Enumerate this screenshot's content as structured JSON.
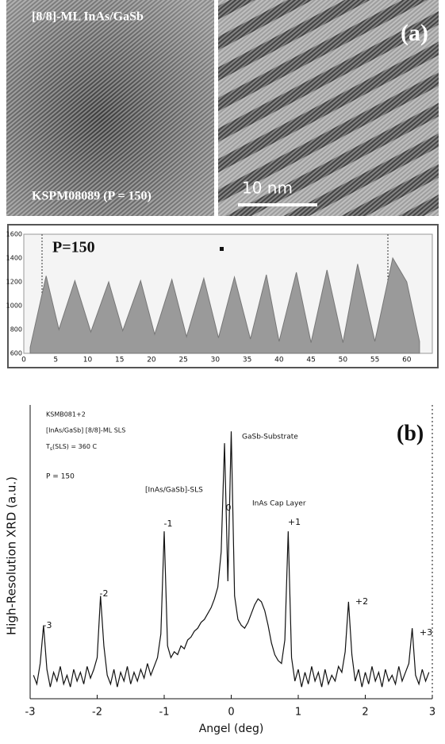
{
  "images": {
    "left_caption": "[8/8]-ML InAs/GaSb",
    "left_sample": "KSPM08089 (P = 150)",
    "scale_bar": "10 nm",
    "panel_label": "(a)"
  },
  "chart_data": [
    {
      "type": "area",
      "annotation": "P=150",
      "color": "#9a9a9a",
      "x": [
        1,
        3.5,
        5.5,
        8,
        10.5,
        13.3,
        15.5,
        18.3,
        20.5,
        23.2,
        25.5,
        28.2,
        30.5,
        33,
        35.5,
        38,
        40,
        42.7,
        45,
        47.5,
        50,
        52.3,
        55,
        57.8,
        60,
        62
      ],
      "values": [
        650,
        1250,
        800,
        1210,
        780,
        1200,
        790,
        1210,
        760,
        1220,
        740,
        1230,
        730,
        1240,
        720,
        1260,
        700,
        1280,
        690,
        1300,
        690,
        1350,
        700,
        1400,
        1200,
        700
      ],
      "xlim": [
        0,
        64
      ],
      "xticks": [
        0,
        5,
        10,
        15,
        20,
        25,
        30,
        35,
        40,
        45,
        50,
        55,
        60
      ],
      "ylim": [
        600,
        1600
      ],
      "yticks": [
        600,
        800,
        1000,
        1200,
        1400,
        1600
      ]
    },
    {
      "type": "line",
      "color": "#111111",
      "panel_label": "(b)",
      "notes": [
        "KSMB081+2",
        "[InAs/GaSb] [8/8]-ML SLS"
      ],
      "temp_symbol": "T",
      "temp_subscript": "s",
      "temp_rest": "(SLS) = 360 C",
      "period": "P = 150",
      "peak_names": [
        "GaSb-Substrate",
        "[InAs/GaSb]-SLS",
        "InAs Cap Layer"
      ],
      "orders": [
        "-3",
        "-2",
        "-1",
        "0",
        "+1",
        "+2",
        "+3"
      ],
      "xlabel": "Angel (deg)",
      "ylabel": "High-Resolution XRD (a.u.)",
      "xlim": [
        -3,
        3
      ],
      "xticks": [
        -3,
        -2,
        -1,
        0,
        1,
        2,
        3
      ],
      "ylim": [
        0,
        100
      ],
      "x": [
        -2.95,
        -2.9,
        -2.85,
        -2.8,
        -2.75,
        -2.7,
        -2.65,
        -2.6,
        -2.55,
        -2.5,
        -2.45,
        -2.4,
        -2.35,
        -2.3,
        -2.25,
        -2.2,
        -2.15,
        -2.1,
        -2.05,
        -2.0,
        -1.95,
        -1.9,
        -1.85,
        -1.8,
        -1.75,
        -1.7,
        -1.65,
        -1.6,
        -1.55,
        -1.5,
        -1.45,
        -1.4,
        -1.35,
        -1.3,
        -1.25,
        -1.2,
        -1.15,
        -1.1,
        -1.05,
        -1.0,
        -0.95,
        -0.9,
        -0.85,
        -0.8,
        -0.75,
        -0.7,
        -0.65,
        -0.6,
        -0.55,
        -0.5,
        -0.45,
        -0.4,
        -0.35,
        -0.3,
        -0.25,
        -0.2,
        -0.15,
        -0.1,
        -0.05,
        0.0,
        0.05,
        0.1,
        0.15,
        0.2,
        0.25,
        0.3,
        0.35,
        0.4,
        0.45,
        0.5,
        0.55,
        0.6,
        0.65,
        0.7,
        0.75,
        0.8,
        0.85,
        0.9,
        0.95,
        1.0,
        1.05,
        1.1,
        1.15,
        1.2,
        1.25,
        1.3,
        1.35,
        1.4,
        1.45,
        1.5,
        1.55,
        1.6,
        1.65,
        1.7,
        1.75,
        1.8,
        1.85,
        1.9,
        1.95,
        2.0,
        2.05,
        2.1,
        2.15,
        2.2,
        2.25,
        2.3,
        2.35,
        2.4,
        2.45,
        2.5,
        2.55,
        2.6,
        2.65,
        2.7,
        2.75,
        2.8,
        2.85,
        2.9,
        2.95
      ],
      "values": [
        8,
        5,
        12,
        25,
        10,
        4,
        9,
        6,
        11,
        5,
        8,
        4,
        10,
        6,
        9,
        5,
        11,
        7,
        10,
        14,
        35,
        18,
        8,
        5,
        10,
        4,
        9,
        6,
        11,
        5,
        9,
        6,
        10,
        7,
        12,
        8,
        11,
        14,
        22,
        57,
        18,
        14,
        16,
        15,
        18,
        17,
        20,
        21,
        23,
        24,
        26,
        27,
        29,
        31,
        34,
        38,
        50,
        87,
        40,
        91,
        35,
        27,
        25,
        24,
        26,
        29,
        32,
        34,
        33,
        30,
        25,
        19,
        15,
        13,
        12,
        20,
        57,
        14,
        6,
        10,
        4,
        9,
        5,
        11,
        6,
        9,
        4,
        10,
        5,
        8,
        6,
        11,
        9,
        16,
        33,
        15,
        6,
        10,
        4,
        9,
        5,
        11,
        6,
        9,
        4,
        10,
        6,
        8,
        5,
        11,
        6,
        9,
        12,
        24,
        8,
        5,
        10,
        6,
        9
      ]
    }
  ]
}
